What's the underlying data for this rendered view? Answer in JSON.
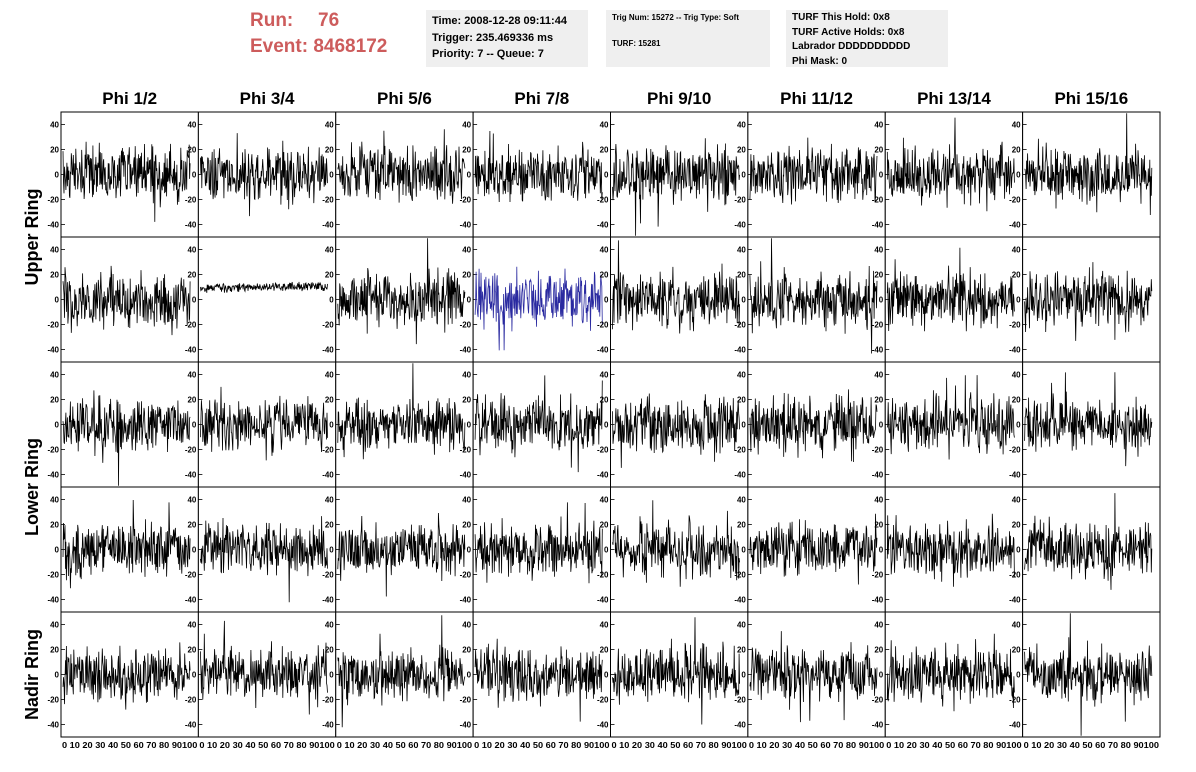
{
  "run": {
    "run_label": "Run:",
    "run_value": "76",
    "event_label": "Event:",
    "event_value": "8468172"
  },
  "info1": {
    "time": "Time: 2008-12-28 09:11:44",
    "trigger": "Trigger: 235.469336 ms",
    "priority": "Priority: 7 -- Queue: 7"
  },
  "info2": {
    "trig": "Trig Num: 15272 -- Trig Type: Soft",
    "turf": "TURF: 15281"
  },
  "info3": {
    "hold": "TURF This Hold: 0x8",
    "active": "TURF Active Holds: 0x8",
    "labrador": "Labrador DDDDDDDDDD",
    "phimask": "Phi Mask: 0"
  },
  "columns": [
    "Phi 1/2",
    "Phi 3/4",
    "Phi 5/6",
    "Phi 7/8",
    "Phi 9/10",
    "Phi 11/12",
    "Phi 13/14",
    "Phi 15/16"
  ],
  "rings": [
    "Upper Ring",
    "Lower Ring",
    "Nadir Ring"
  ],
  "colors": {
    "trace": "#000000",
    "highlight": "#2a2aa0",
    "header": "#cd5c5c",
    "infobg": "#efefef"
  },
  "chart_data": {
    "type": "line",
    "description_rows": 5,
    "description_cols": 8,
    "y_ticks": [
      -40,
      -20,
      0,
      20,
      40
    ],
    "ylim": [
      -50,
      50
    ],
    "x_ticks": [
      0,
      10,
      20,
      30,
      40,
      50,
      60,
      70,
      80,
      90,
      100
    ],
    "xlim": [
      0,
      100
    ],
    "x_tick_labels": "0 10 20 30 40 50 60 70 80 90100",
    "highlight_panel": {
      "row": 1,
      "col": 3
    },
    "quiet_panel": {
      "row": 1,
      "col": 1
    }
  }
}
